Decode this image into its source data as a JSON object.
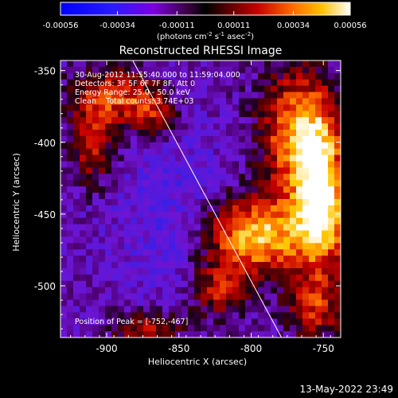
{
  "chart_data": {
    "type": "heatmap",
    "title": "Reconstructed RHESSI Image",
    "colorbar": {
      "ticks": [
        "-0.00056",
        "-0.00034",
        "-0.00011",
        "0.00011",
        "0.00034",
        "0.00056"
      ],
      "units_parts": [
        "(photons cm",
        "-2",
        " s",
        "-1",
        " asec",
        "-2",
        ")"
      ],
      "range": [
        -0.00056,
        0.00056
      ]
    },
    "xaxis": {
      "label": "Heliocentric X (arcsec)",
      "ticks": [
        "-900",
        "-850",
        "-800",
        "-750"
      ],
      "tick_values": [
        -900,
        -850,
        -800,
        -750
      ],
      "range": [
        -932,
        -738
      ]
    },
    "yaxis": {
      "label": "Heliocentric Y (arcsec)",
      "ticks": [
        "-350",
        "-400",
        "-450",
        "-500"
      ],
      "tick_values": [
        -350,
        -400,
        -450,
        -500
      ],
      "range": [
        -536,
        -343
      ]
    },
    "annotations": [
      "30-Aug-2012 11:55:40.000 to 11:59:04.000",
      "Detectors: 3F 5F 6F 7F 8F, Att 0",
      "Energy Range: 25.0 - 50.0 keV",
      "Clean    Total counts: 3.74E+03"
    ],
    "peak_label": "Position of Peak = [-752,-467]",
    "peak": [
      -752,
      -467
    ],
    "limb_line": {
      "x": [
        -882,
        -779
      ],
      "y": [
        -343,
        -536
      ]
    },
    "footer": "13-May-2022 23:49",
    "grid": false
  }
}
